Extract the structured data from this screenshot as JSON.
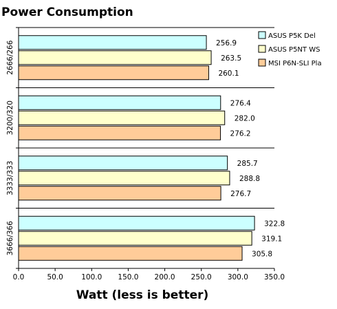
{
  "chart_data": {
    "type": "bar",
    "orientation": "horizontal",
    "title": "Power Consumption",
    "xlabel": "Watt (less is better)",
    "ylabel": "",
    "xlim": [
      0,
      350
    ],
    "xticks": [
      "0.0",
      "50.0",
      "100.0",
      "150.0",
      "200.0",
      "250.0",
      "300.0",
      "350.0"
    ],
    "categories": [
      "2666/266",
      "3200/320",
      "3333/333",
      "3666/366"
    ],
    "series": [
      {
        "name": "ASUS P5K Del",
        "color": "#ccffff",
        "values": [
          256.9,
          276.4,
          285.7,
          322.8
        ],
        "labels": [
          "256.9",
          "276.4",
          "285.7",
          "322.8"
        ]
      },
      {
        "name": "ASUS P5NT WS",
        "color": "#ffffcc",
        "values": [
          263.5,
          282.0,
          288.8,
          319.1
        ],
        "labels": [
          "263.5",
          "282.0",
          "288.8",
          "319.1"
        ]
      },
      {
        "name": "MSI P6N-SLI Pla",
        "color": "#ffcc99",
        "values": [
          260.1,
          276.2,
          276.7,
          305.8
        ],
        "labels": [
          "260.1",
          "276.2",
          "276.7",
          "305.8"
        ]
      }
    ],
    "legend_position": "top-right",
    "grid": false
  }
}
